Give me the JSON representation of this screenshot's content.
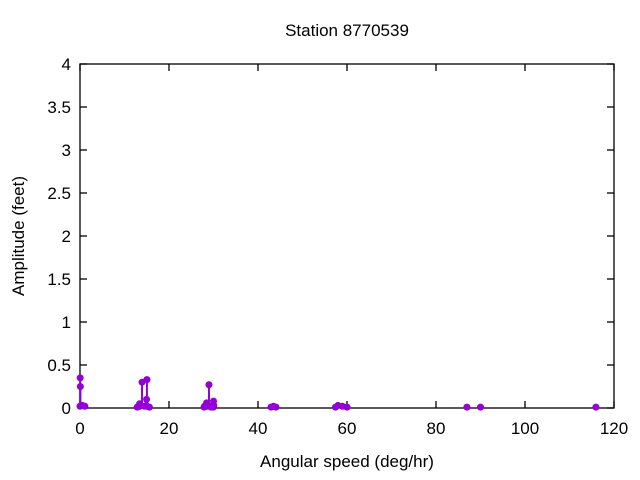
{
  "title": "Station 8770539",
  "chart_data": {
    "type": "scatter",
    "style": "impulses-with-points",
    "title": "Station 8770539",
    "xlabel": "Angular speed (deg/hr)",
    "ylabel": "Amplitude (feet)",
    "xlim": [
      0,
      120
    ],
    "ylim": [
      0,
      4
    ],
    "xticks": [
      0,
      20,
      40,
      60,
      80,
      100,
      120
    ],
    "yticks": [
      0,
      0.5,
      1,
      1.5,
      2,
      2.5,
      3,
      3.5,
      4
    ],
    "grid": false,
    "legend": "none",
    "marker_color": "#9400d3",
    "axis_color": "#000000",
    "background_color": "#ffffff",
    "points": [
      {
        "x": 0.0,
        "y": 0.02
      },
      {
        "x": 0.041,
        "y": 0.35
      },
      {
        "x": 0.082,
        "y": 0.25
      },
      {
        "x": 0.544,
        "y": 0.03
      },
      {
        "x": 1.098,
        "y": 0.02
      },
      {
        "x": 12.85,
        "y": 0.01
      },
      {
        "x": 13.4,
        "y": 0.05
      },
      {
        "x": 13.47,
        "y": 0.02
      },
      {
        "x": 13.94,
        "y": 0.3
      },
      {
        "x": 14.49,
        "y": 0.02
      },
      {
        "x": 14.92,
        "y": 0.03
      },
      {
        "x": 14.96,
        "y": 0.1
      },
      {
        "x": 15.0,
        "y": 0.02
      },
      {
        "x": 15.04,
        "y": 0.33
      },
      {
        "x": 15.59,
        "y": 0.01
      },
      {
        "x": 27.9,
        "y": 0.01
      },
      {
        "x": 27.97,
        "y": 0.02
      },
      {
        "x": 28.44,
        "y": 0.06
      },
      {
        "x": 28.51,
        "y": 0.02
      },
      {
        "x": 28.98,
        "y": 0.27
      },
      {
        "x": 29.46,
        "y": 0.01
      },
      {
        "x": 29.53,
        "y": 0.02
      },
      {
        "x": 29.96,
        "y": 0.01
      },
      {
        "x": 30.0,
        "y": 0.08
      },
      {
        "x": 30.08,
        "y": 0.03
      },
      {
        "x": 42.93,
        "y": 0.01
      },
      {
        "x": 43.48,
        "y": 0.02
      },
      {
        "x": 44.03,
        "y": 0.01
      },
      {
        "x": 57.42,
        "y": 0.01
      },
      {
        "x": 57.97,
        "y": 0.03
      },
      {
        "x": 58.98,
        "y": 0.02
      },
      {
        "x": 60.0,
        "y": 0.01
      },
      {
        "x": 86.95,
        "y": 0.01
      },
      {
        "x": 90.0,
        "y": 0.01
      },
      {
        "x": 115.94,
        "y": 0.01
      }
    ]
  }
}
